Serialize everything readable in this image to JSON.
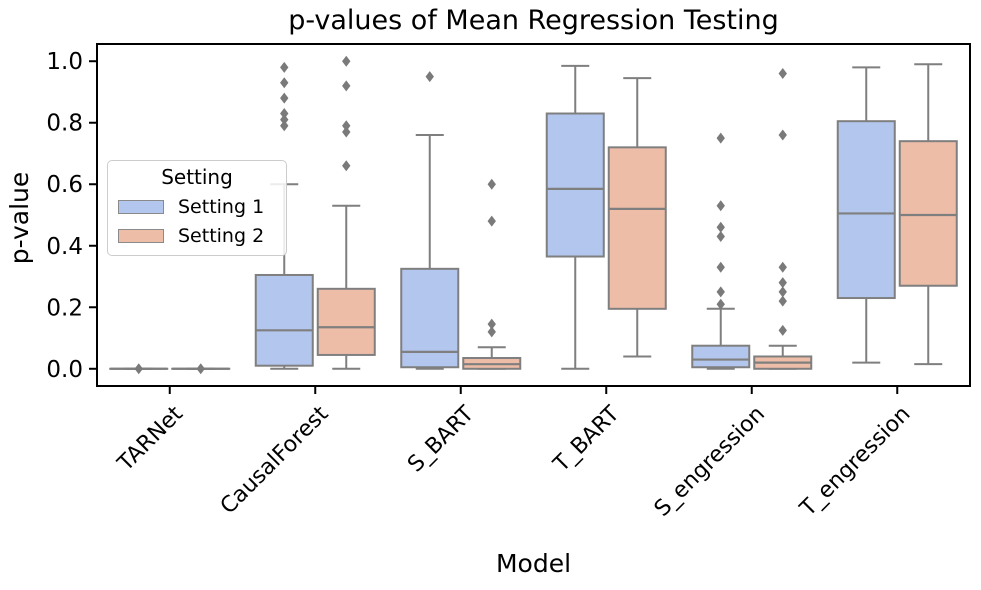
{
  "figure": {
    "title": "p-values of Mean Regression Testing",
    "xlabel": "Model",
    "ylabel": "p-value"
  },
  "legend": {
    "title": "Setting",
    "items": [
      {
        "label": "Setting 1",
        "color": "#b3c7ee"
      },
      {
        "label": "Setting 2",
        "color": "#eebda8"
      }
    ]
  },
  "colors": {
    "box_edge": "#7f7f7f",
    "outlier": "#7a7a7a",
    "axis": "#000000",
    "background": "#ffffff"
  },
  "chart_data": {
    "type": "boxplot",
    "title": "p-values of Mean Regression Testing",
    "xlabel": "Model",
    "ylabel": "p-value",
    "categories": [
      "TARNet",
      "CausalForest",
      "S_BART",
      "T_BART",
      "S_engression",
      "T_engression"
    ],
    "yticks": [
      "0.0",
      "0.2",
      "0.4",
      "0.6",
      "0.8",
      "1.0"
    ],
    "ytick_values": [
      0.0,
      0.2,
      0.4,
      0.6,
      0.8,
      1.0
    ],
    "ylim": [
      -0.056,
      1.056
    ],
    "grid": false,
    "legend_position": "upper left",
    "series": [
      {
        "name": "Setting 1",
        "color": "#b3c7ee",
        "boxes": [
          {
            "whislo": 0.0,
            "q1": 0.0,
            "med": 0.0,
            "q3": 0.0,
            "whishi": 0.0,
            "outliers": [
              0.0
            ]
          },
          {
            "whislo": 0.0,
            "q1": 0.01,
            "med": 0.125,
            "q3": 0.305,
            "whishi": 0.6,
            "outliers": [
              0.79,
              0.81,
              0.83,
              0.88,
              0.93,
              0.98
            ]
          },
          {
            "whislo": 0.0,
            "q1": 0.005,
            "med": 0.055,
            "q3": 0.325,
            "whishi": 0.76,
            "outliers": [
              0.95
            ]
          },
          {
            "whislo": 0.0,
            "q1": 0.365,
            "med": 0.585,
            "q3": 0.83,
            "whishi": 0.985,
            "outliers": []
          },
          {
            "whislo": 0.0,
            "q1": 0.005,
            "med": 0.03,
            "q3": 0.075,
            "whishi": 0.195,
            "outliers": [
              0.21,
              0.25,
              0.33,
              0.43,
              0.46,
              0.53,
              0.75
            ]
          },
          {
            "whislo": 0.02,
            "q1": 0.23,
            "med": 0.505,
            "q3": 0.805,
            "whishi": 0.98,
            "outliers": []
          }
        ]
      },
      {
        "name": "Setting 2",
        "color": "#eebda8",
        "boxes": [
          {
            "whislo": 0.0,
            "q1": 0.0,
            "med": 0.0,
            "q3": 0.0,
            "whishi": 0.0,
            "outliers": [
              0.0
            ]
          },
          {
            "whislo": 0.0,
            "q1": 0.045,
            "med": 0.135,
            "q3": 0.26,
            "whishi": 0.53,
            "outliers": [
              0.66,
              0.77,
              0.79,
              0.92,
              1.0
            ]
          },
          {
            "whislo": 0.0,
            "q1": 0.0,
            "med": 0.015,
            "q3": 0.035,
            "whishi": 0.07,
            "outliers": [
              0.12,
              0.145,
              0.48,
              0.6
            ]
          },
          {
            "whislo": 0.04,
            "q1": 0.195,
            "med": 0.52,
            "q3": 0.72,
            "whishi": 0.945,
            "outliers": []
          },
          {
            "whislo": 0.0,
            "q1": 0.0,
            "med": 0.02,
            "q3": 0.04,
            "whishi": 0.075,
            "outliers": [
              0.125,
              0.22,
              0.25,
              0.28,
              0.33,
              0.76,
              0.96
            ]
          },
          {
            "whislo": 0.015,
            "q1": 0.27,
            "med": 0.5,
            "q3": 0.74,
            "whishi": 0.99,
            "outliers": []
          }
        ]
      }
    ]
  }
}
